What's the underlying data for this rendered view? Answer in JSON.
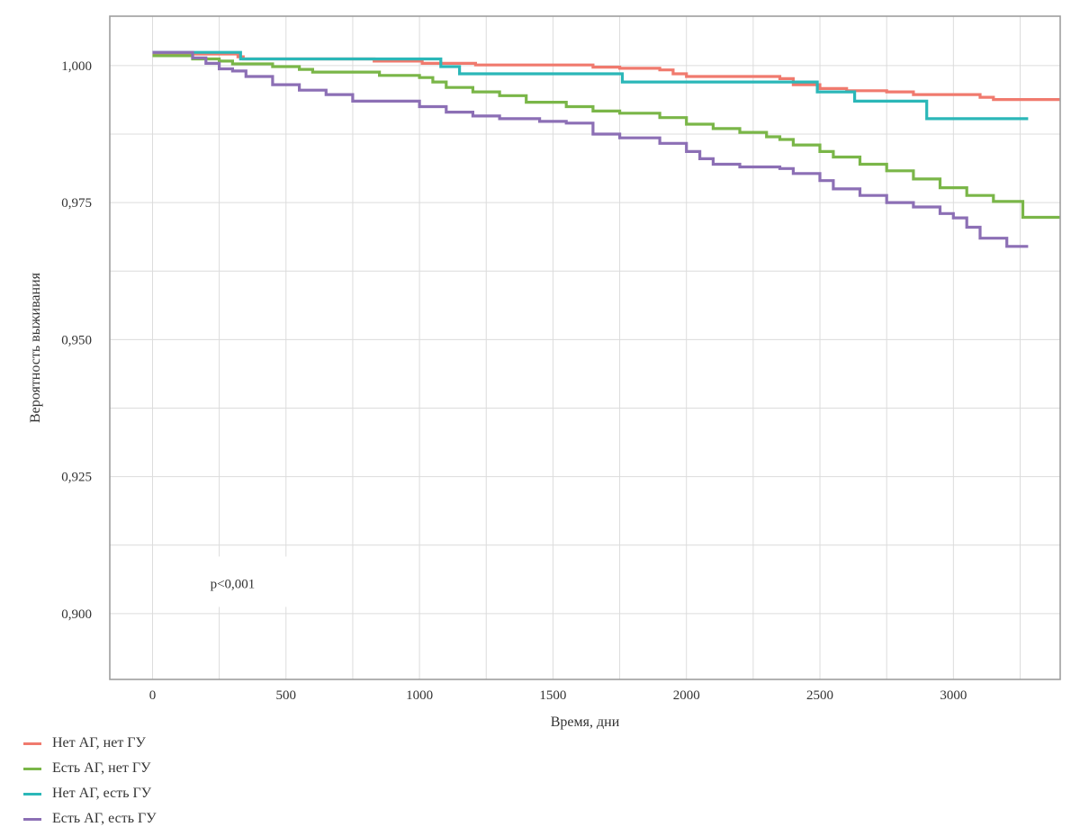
{
  "chart_data": {
    "type": "line",
    "title": "",
    "xlabel": "Время, дни",
    "ylabel": "Вероятность выживания",
    "xlim": [
      -160,
      3400
    ],
    "ylim": [
      0.888,
      1.009
    ],
    "x_ticks": [
      0,
      500,
      1000,
      1500,
      2000,
      2500,
      3000
    ],
    "x_tick_labels": [
      "0",
      "500",
      "1000",
      "1500",
      "2000",
      "2500",
      "3000"
    ],
    "y_ticks": [
      0.9,
      0.925,
      0.95,
      0.975,
      1.0
    ],
    "y_tick_labels": [
      "0,900",
      "0,925",
      "0,950",
      "0,975",
      "1,000"
    ],
    "grid": true,
    "legend_position": "bottom-left",
    "annotation": "p<0,001",
    "series": [
      {
        "name": "Нет АГ, нет ГУ",
        "color": "#f07a6e",
        "points": [
          [
            0,
            1.0021
          ],
          [
            300,
            1.0021
          ],
          [
            320,
            1.0016
          ],
          [
            330,
            1.0016
          ],
          [
            340,
            1.0012
          ],
          [
            800,
            1.0012
          ],
          [
            830,
            1.0008
          ],
          [
            1000,
            1.0008
          ],
          [
            1010,
            1.0004
          ],
          [
            1200,
            1.0004
          ],
          [
            1210,
            1.0001
          ],
          [
            1600,
            1.0001
          ],
          [
            1650,
            0.9997
          ],
          [
            1750,
            0.9995
          ],
          [
            1900,
            0.9992
          ],
          [
            1950,
            0.9985
          ],
          [
            2000,
            0.998
          ],
          [
            2350,
            0.9976
          ],
          [
            2400,
            0.9965
          ],
          [
            2500,
            0.9958
          ],
          [
            2600,
            0.9954
          ],
          [
            2750,
            0.9952
          ],
          [
            2850,
            0.9947
          ],
          [
            2950,
            0.9947
          ],
          [
            3100,
            0.9942
          ],
          [
            3150,
            0.9938
          ],
          [
            3400,
            0.9938
          ]
        ]
      },
      {
        "name": "Есть АГ, нет ГУ",
        "color": "#7ab648",
        "points": [
          [
            0,
            1.0018
          ],
          [
            100,
            1.0018
          ],
          [
            150,
            1.0012
          ],
          [
            250,
            1.0008
          ],
          [
            300,
            1.0003
          ],
          [
            450,
            0.9998
          ],
          [
            550,
            0.9993
          ],
          [
            600,
            0.9988
          ],
          [
            800,
            0.9988
          ],
          [
            850,
            0.9982
          ],
          [
            1000,
            0.9978
          ],
          [
            1050,
            0.997
          ],
          [
            1100,
            0.996
          ],
          [
            1200,
            0.9952
          ],
          [
            1300,
            0.9945
          ],
          [
            1400,
            0.9933
          ],
          [
            1550,
            0.9925
          ],
          [
            1650,
            0.9917
          ],
          [
            1750,
            0.9913
          ],
          [
            1900,
            0.9905
          ],
          [
            2000,
            0.9893
          ],
          [
            2100,
            0.9885
          ],
          [
            2200,
            0.9878
          ],
          [
            2300,
            0.987
          ],
          [
            2350,
            0.9865
          ],
          [
            2400,
            0.9855
          ],
          [
            2500,
            0.9843
          ],
          [
            2550,
            0.9833
          ],
          [
            2650,
            0.982
          ],
          [
            2750,
            0.9808
          ],
          [
            2850,
            0.9793
          ],
          [
            2950,
            0.9777
          ],
          [
            3050,
            0.9763
          ],
          [
            3150,
            0.9752
          ],
          [
            3250,
            0.9752
          ],
          [
            3260,
            0.9723
          ],
          [
            3400,
            0.9723
          ]
        ]
      },
      {
        "name": "Нет АГ, есть ГУ",
        "color": "#2bb7b8",
        "points": [
          [
            0,
            1.0024
          ],
          [
            320,
            1.0024
          ],
          [
            330,
            1.0012
          ],
          [
            1070,
            1.0012
          ],
          [
            1080,
            0.9998
          ],
          [
            1140,
            0.9998
          ],
          [
            1150,
            0.9985
          ],
          [
            1750,
            0.9985
          ],
          [
            1760,
            0.997
          ],
          [
            2480,
            0.997
          ],
          [
            2490,
            0.9952
          ],
          [
            2620,
            0.9952
          ],
          [
            2630,
            0.9935
          ],
          [
            2890,
            0.9935
          ],
          [
            2900,
            0.9903
          ],
          [
            3280,
            0.9903
          ]
        ]
      },
      {
        "name": "Есть АГ, есть ГУ",
        "color": "#8c6fb5",
        "points": [
          [
            0,
            1.0024
          ],
          [
            100,
            1.0024
          ],
          [
            150,
            1.0014
          ],
          [
            200,
            1.0004
          ],
          [
            250,
            0.9994
          ],
          [
            300,
            0.999
          ],
          [
            350,
            0.998
          ],
          [
            450,
            0.9965
          ],
          [
            550,
            0.9955
          ],
          [
            650,
            0.9947
          ],
          [
            750,
            0.9935
          ],
          [
            950,
            0.9935
          ],
          [
            1000,
            0.9925
          ],
          [
            1100,
            0.9915
          ],
          [
            1200,
            0.9908
          ],
          [
            1300,
            0.9903
          ],
          [
            1450,
            0.9898
          ],
          [
            1550,
            0.9895
          ],
          [
            1650,
            0.9875
          ],
          [
            1750,
            0.9868
          ],
          [
            1900,
            0.9858
          ],
          [
            2000,
            0.9843
          ],
          [
            2050,
            0.983
          ],
          [
            2100,
            0.982
          ],
          [
            2200,
            0.9815
          ],
          [
            2350,
            0.9812
          ],
          [
            2400,
            0.9803
          ],
          [
            2500,
            0.979
          ],
          [
            2550,
            0.9775
          ],
          [
            2650,
            0.9763
          ],
          [
            2750,
            0.975
          ],
          [
            2850,
            0.9742
          ],
          [
            2950,
            0.973
          ],
          [
            3000,
            0.9722
          ],
          [
            3050,
            0.9705
          ],
          [
            3100,
            0.9685
          ],
          [
            3200,
            0.967
          ],
          [
            3280,
            0.967
          ]
        ]
      }
    ]
  }
}
